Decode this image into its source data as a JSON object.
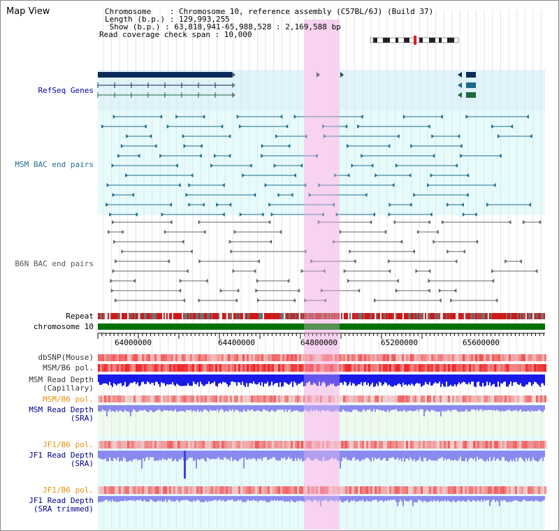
{
  "header": {
    "title": "Map View",
    "chromosome_line": "Chromosome    : Chromosome 10, reference assembly (C57BL/6J) (Build 37)",
    "length_line": "Length (b.p.) : 129,993,255",
    "show_line": " Show (b.p.) : 63,818,941-65,988,528 : 2,169,588 bp",
    "coverage_line": "Read coverage check span : 10,000"
  },
  "tracks": {
    "refseq": "RefSeq Genes",
    "msm_bac": "MSM BAC end pairs",
    "b6n_bac": "B6N BAC end pairs",
    "repeat": "Repeat",
    "chromosome": "chromosome 10",
    "dbsnp": "dbSNP(Mouse)",
    "msm_b6_pol": "MSM/B6 pol.",
    "msm_depth_cap_1": "MSM Read Depth",
    "msm_depth_cap_2": "(Capillary)",
    "msm_b6_pol_2": "MSM/B6 pol.",
    "msm_depth_sra_1": "MSM Read Depth",
    "msm_depth_sra_2": "(SRA)",
    "jf1_b6_pol": "JF1/B6 pol.",
    "jf1_depth_sra_1": "JF1 Read Depth",
    "jf1_depth_sra_2": "(SRA)",
    "jf1_b6_pol_2": "JF1/B6 pol.",
    "jf1_depth_trim_1": "JF1 Read Depth",
    "jf1_depth_trim_2": "(SRA trimmed)"
  },
  "scale": {
    "ticks": [
      "64000000",
      "64400000",
      "64800000",
      "65200000",
      "65600000"
    ]
  },
  "colors": {
    "highlight": "#f8d8f0",
    "refseq_bg": "#dff3fb",
    "track_bg": "#e6fbfb",
    "gene": "#0a2a5a",
    "msm_pair": "#1e6e8e",
    "b6n_pair": "#666666",
    "chromosome": "#007000",
    "depth_blue": "#1a1ae8",
    "depth_light": "#8a8aee"
  }
}
